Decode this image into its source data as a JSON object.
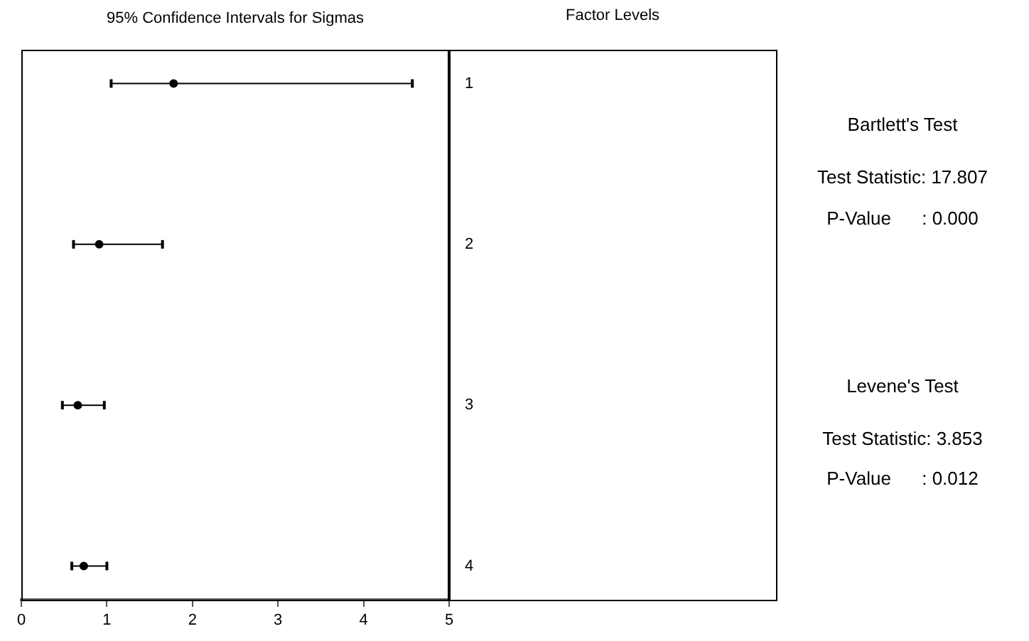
{
  "chart_data": {
    "type": "scatter",
    "orientation": "horizontal",
    "title": "95% Confidence Intervals for Sigmas",
    "categories": [
      "1",
      "2",
      "3",
      "4"
    ],
    "values": [
      1.78,
      0.91,
      0.66,
      0.73
    ],
    "errors": [
      [
        1.05,
        4.57
      ],
      [
        0.61,
        1.65
      ],
      [
        0.48,
        0.97
      ],
      [
        0.59,
        1.0
      ]
    ],
    "color": "#000000",
    "marker": "circle",
    "xlim": [
      0,
      5
    ],
    "xticks": [
      0,
      1,
      2,
      3,
      4,
      5
    ],
    "annotations": [
      "Factor Levels",
      "Bartlett's Test",
      "Test Statistic: 17.807",
      "P-Value      : 0.000",
      "Levene's Test",
      "Test Statistic: 3.853",
      "P-Value      : 0.012"
    ]
  }
}
